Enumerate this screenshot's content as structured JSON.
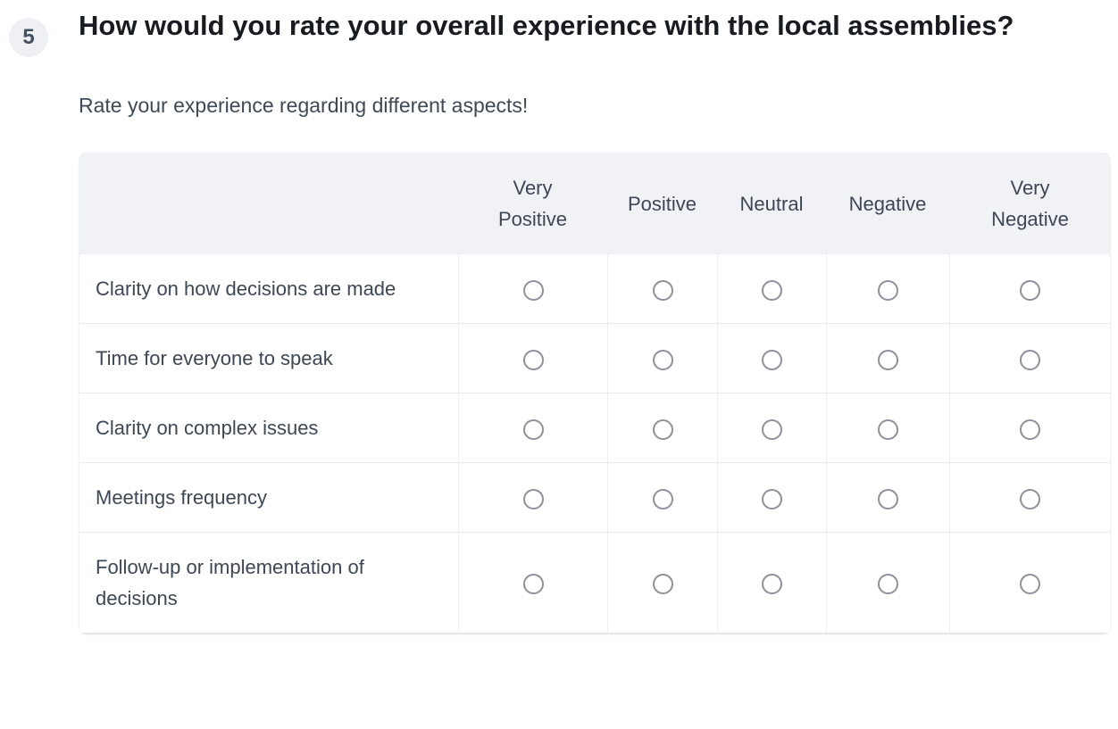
{
  "question": {
    "number": "5",
    "title": "How would you rate your overall experience with the local assemblies?",
    "description": "Rate your experience regarding different aspects!"
  },
  "matrix": {
    "columns": [
      "Very Positive",
      "Positive",
      "Neutral",
      "Negative",
      "Very Negative"
    ],
    "rows": [
      "Clarity on how decisions are made",
      "Time for everyone to speak",
      "Clarity on complex issues",
      "Meetings frequency",
      "Follow-up or implementation of decisions"
    ],
    "selection_state": "none-selected"
  },
  "colors": {
    "header_background": "#f1f2f6",
    "row_divider": "#e9ebee",
    "radio_border": "#8e909b",
    "title_text": "#181b20",
    "body_text": "#3e4754",
    "badge_background": "#eef0f4",
    "badge_text": "#454f5e"
  }
}
